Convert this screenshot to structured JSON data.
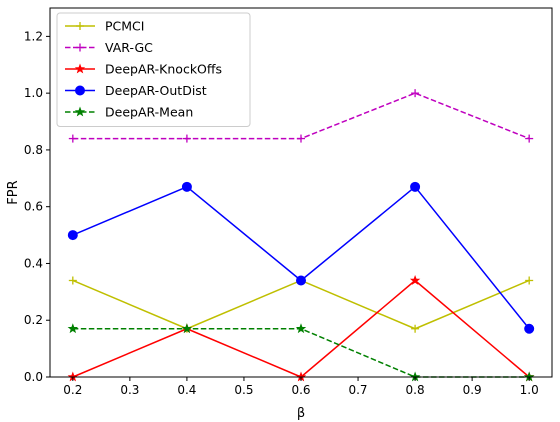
{
  "chart_data": {
    "type": "line",
    "xlabel": "β",
    "ylabel": "FPR",
    "xlim": [
      0.16,
      1.04
    ],
    "ylim": [
      0.0,
      1.3
    ],
    "x_ticks": [
      "0.2",
      "0.3",
      "0.4",
      "0.5",
      "0.6",
      "0.7",
      "0.8",
      "0.9",
      "1.0"
    ],
    "y_ticks": [
      "0.0",
      "0.2",
      "0.4",
      "0.6",
      "0.8",
      "1.0",
      "1.2"
    ],
    "grid": false,
    "legend_position": "top-left",
    "x": [
      0.2,
      0.4,
      0.6,
      0.8,
      1.0
    ],
    "series": [
      {
        "name": "PCMCI",
        "values": [
          0.34,
          0.17,
          0.34,
          0.17,
          0.34
        ],
        "color": "#bfbf00",
        "dash": "solid",
        "marker": "plus"
      },
      {
        "name": "VAR-GC",
        "values": [
          0.84,
          0.84,
          0.84,
          1.0,
          0.84
        ],
        "color": "#bf00bf",
        "dash": "dashed",
        "marker": "plus"
      },
      {
        "name": "DeepAR-KnockOffs",
        "values": [
          0.0,
          0.17,
          0.0,
          0.34,
          0.0
        ],
        "color": "#ff0000",
        "dash": "solid",
        "marker": "star"
      },
      {
        "name": "DeepAR-OutDist",
        "values": [
          0.5,
          0.67,
          0.34,
          0.67,
          0.17
        ],
        "color": "#0000ff",
        "dash": "solid",
        "marker": "circle"
      },
      {
        "name": "DeepAR-Mean",
        "values": [
          0.17,
          0.17,
          0.17,
          0.0,
          0.0
        ],
        "color": "#008000",
        "dash": "dashed",
        "marker": "star"
      }
    ]
  }
}
